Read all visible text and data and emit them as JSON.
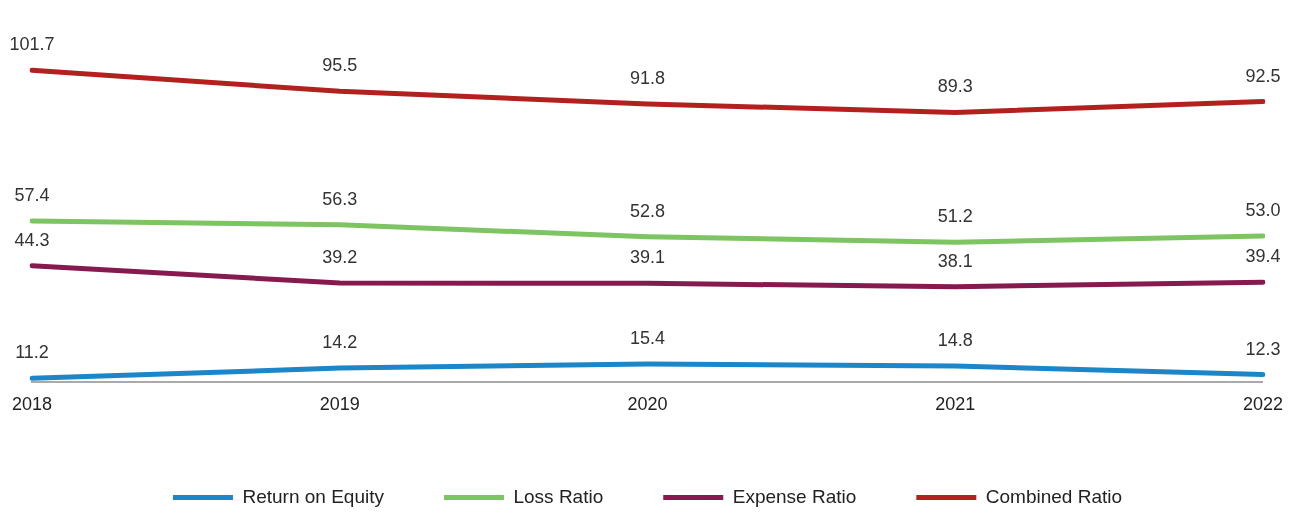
{
  "chart_data": {
    "type": "line",
    "categories": [
      "2018",
      "2019",
      "2020",
      "2021",
      "2022"
    ],
    "series": [
      {
        "name": "Return on Equity",
        "color": "#1b86c8",
        "values": [
          11.2,
          14.2,
          15.4,
          14.8,
          12.3
        ]
      },
      {
        "name": "Loss Ratio",
        "color": "#7dc462",
        "values": [
          57.4,
          56.3,
          52.8,
          51.2,
          53.0
        ],
        "value_labels": [
          "57.4",
          "56.3",
          "52.8",
          "51.2",
          "53.0"
        ]
      },
      {
        "name": "Expense Ratio",
        "color": "#861a4e",
        "values": [
          44.3,
          39.2,
          39.1,
          38.1,
          39.4
        ]
      },
      {
        "name": "Combined Ratio",
        "color": "#b3211f",
        "values": [
          101.7,
          95.5,
          91.8,
          89.3,
          92.5
        ]
      }
    ],
    "tick_labels": "x",
    "grid": false,
    "legend": "bottom",
    "marker": "none",
    "line_style": "solid",
    "data_labels": true
  }
}
